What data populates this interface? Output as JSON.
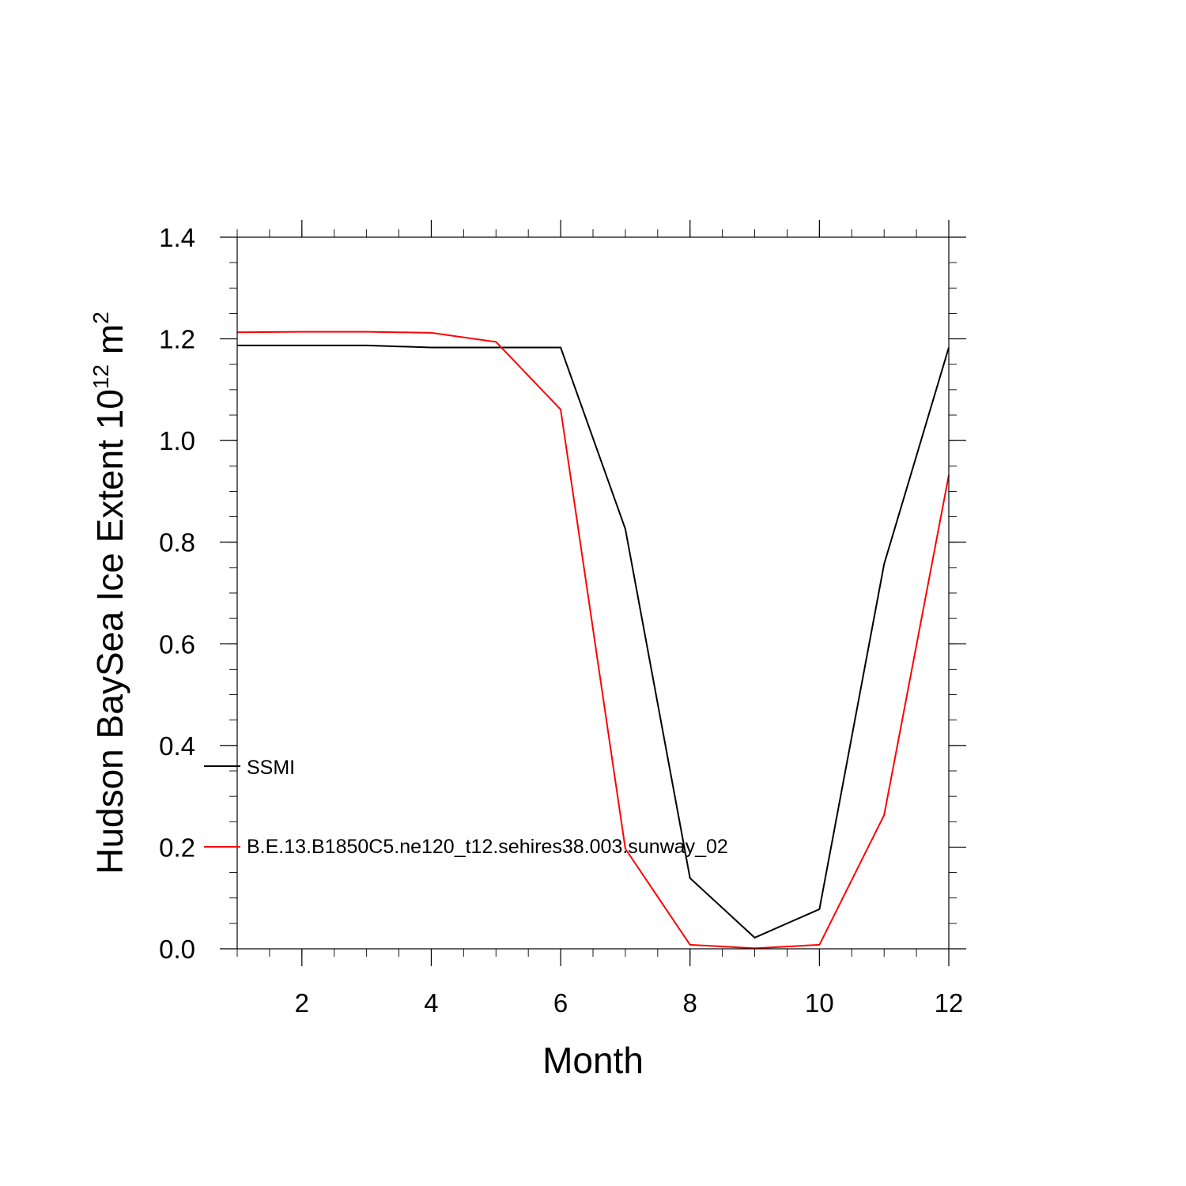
{
  "chart_data": {
    "type": "line",
    "title": "",
    "xlabel": "Month",
    "ylabel": "Hudson BaySea Ice Extent 10",
    "ylabel_exponent": "12",
    "ylabel_unit": " m",
    "ylabel_unit_exponent": "2",
    "xlim": [
      1,
      12
    ],
    "ylim": [
      0.0,
      1.4
    ],
    "xticks": [
      2,
      4,
      6,
      8,
      10,
      12
    ],
    "xtick_labels": [
      "2",
      "4",
      "6",
      "8",
      "10",
      "12"
    ],
    "yticks": [
      0.0,
      0.2,
      0.4,
      0.6,
      0.8,
      1.0,
      1.2,
      1.4
    ],
    "ytick_labels": [
      "0.0",
      "0.2",
      "0.4",
      "0.6",
      "0.8",
      "1.0",
      "1.2",
      "1.4"
    ],
    "x": [
      1,
      2,
      3,
      4,
      5,
      6,
      7,
      8,
      9,
      10,
      11,
      12
    ],
    "series": [
      {
        "name": "SSMI",
        "color": "#000000",
        "values": [
          1.187,
          1.187,
          1.187,
          1.183,
          1.183,
          1.183,
          0.826,
          0.139,
          0.022,
          0.078,
          0.757,
          1.183
        ]
      },
      {
        "name": "B.E.13.B1850C5.ne120_t12.sehires38.003.sunway_02",
        "color": "#ff0000",
        "values": [
          1.213,
          1.214,
          1.214,
          1.212,
          1.194,
          1.061,
          0.197,
          0.008,
          0.001,
          0.008,
          0.263,
          0.932
        ]
      }
    ],
    "grid": false,
    "legend_position": "lower-left inside"
  }
}
